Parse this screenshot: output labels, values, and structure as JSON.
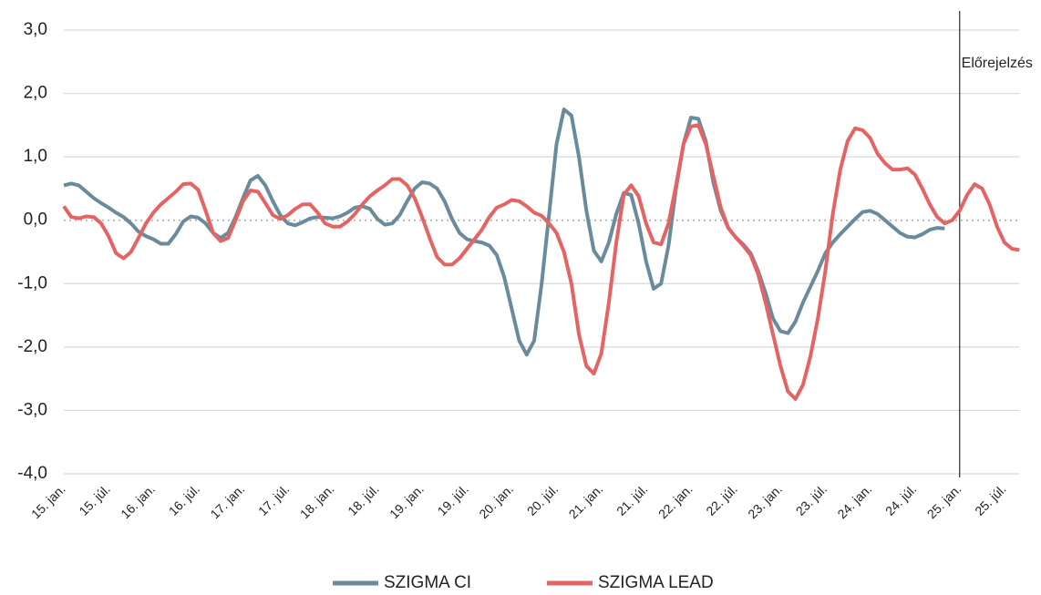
{
  "chart_data": {
    "type": "line",
    "categories": [
      "15. jan.",
      null,
      null,
      null,
      null,
      null,
      "15. júl.",
      null,
      null,
      null,
      null,
      null,
      "16. jan.",
      null,
      null,
      null,
      null,
      null,
      "16. júl.",
      null,
      null,
      null,
      null,
      null,
      "17. jan.",
      null,
      null,
      null,
      null,
      null,
      "17. júl.",
      null,
      null,
      null,
      null,
      null,
      "18. jan.",
      null,
      null,
      null,
      null,
      null,
      "18. júl.",
      null,
      null,
      null,
      null,
      null,
      "19. jan.",
      null,
      null,
      null,
      null,
      null,
      "19. júl.",
      null,
      null,
      null,
      null,
      null,
      "20. jan.",
      null,
      null,
      null,
      null,
      null,
      "20. júl.",
      null,
      null,
      null,
      null,
      null,
      "21. jan.",
      null,
      null,
      null,
      null,
      null,
      "21. júl.",
      null,
      null,
      null,
      null,
      null,
      "22. jan.",
      null,
      null,
      null,
      null,
      null,
      "22. júl.",
      null,
      null,
      null,
      null,
      null,
      "23. jan.",
      null,
      null,
      null,
      null,
      null,
      "23. júl.",
      null,
      null,
      null,
      null,
      null,
      "24. jan.",
      null,
      null,
      null,
      null,
      null,
      "24. júl.",
      null,
      null,
      null,
      null,
      null,
      "25. jan.",
      null,
      null,
      null,
      null,
      null,
      "25. júl.",
      null,
      null
    ],
    "series": [
      {
        "name": "SZIGMA CI",
        "color": "#6a8b9c",
        "values": [
          0.55,
          0.58,
          0.55,
          0.45,
          0.35,
          0.27,
          0.2,
          0.12,
          0.05,
          -0.05,
          -0.18,
          -0.25,
          -0.3,
          -0.37,
          -0.37,
          -0.22,
          -0.02,
          0.06,
          0.04,
          -0.05,
          -0.2,
          -0.28,
          -0.2,
          0.05,
          0.35,
          0.63,
          0.7,
          0.55,
          0.3,
          0.08,
          -0.05,
          -0.08,
          -0.03,
          0.03,
          0.05,
          0.04,
          0.03,
          0.06,
          0.12,
          0.2,
          0.22,
          0.18,
          0.02,
          -0.07,
          -0.05,
          0.08,
          0.3,
          0.5,
          0.6,
          0.58,
          0.5,
          0.3,
          0.02,
          -0.2,
          -0.3,
          -0.33,
          -0.35,
          -0.4,
          -0.55,
          -0.9,
          -1.4,
          -1.9,
          -2.12,
          -1.9,
          -1.0,
          0.1,
          1.2,
          1.75,
          1.65,
          1.0,
          0.15,
          -0.48,
          -0.65,
          -0.35,
          0.1,
          0.43,
          0.4,
          -0.05,
          -0.65,
          -1.08,
          -1.0,
          -0.4,
          0.5,
          1.2,
          1.62,
          1.6,
          1.25,
          0.6,
          0.15,
          -0.12,
          -0.27,
          -0.38,
          -0.52,
          -0.8,
          -1.15,
          -1.55,
          -1.75,
          -1.78,
          -1.6,
          -1.3,
          -1.05,
          -0.8,
          -0.52,
          -0.35,
          -0.22,
          -0.1,
          0.02,
          0.13,
          0.15,
          0.1,
          0.0,
          -0.1,
          -0.2,
          -0.26,
          -0.27,
          -0.22,
          -0.15,
          -0.12,
          -0.13,
          null,
          null,
          null,
          null,
          null,
          null,
          null,
          null,
          null,
          null
        ]
      },
      {
        "name": "SZIGMA LEAD",
        "color": "#e46464",
        "values": [
          0.22,
          0.05,
          0.03,
          0.06,
          0.05,
          -0.05,
          -0.25,
          -0.52,
          -0.6,
          -0.5,
          -0.28,
          -0.05,
          0.12,
          0.25,
          0.35,
          0.45,
          0.57,
          0.58,
          0.48,
          0.15,
          -0.2,
          -0.33,
          -0.28,
          0.0,
          0.3,
          0.47,
          0.45,
          0.27,
          0.08,
          0.02,
          0.08,
          0.18,
          0.25,
          0.25,
          0.12,
          -0.05,
          -0.1,
          -0.1,
          -0.02,
          0.1,
          0.25,
          0.38,
          0.47,
          0.55,
          0.65,
          0.65,
          0.55,
          0.35,
          0.05,
          -0.28,
          -0.58,
          -0.7,
          -0.7,
          -0.6,
          -0.45,
          -0.3,
          -0.15,
          0.05,
          0.2,
          0.25,
          0.32,
          0.3,
          0.22,
          0.12,
          0.07,
          -0.05,
          -0.2,
          -0.5,
          -1.0,
          -1.8,
          -2.3,
          -2.42,
          -2.1,
          -1.3,
          -0.35,
          0.4,
          0.55,
          0.38,
          -0.05,
          -0.35,
          -0.38,
          -0.05,
          0.55,
          1.2,
          1.48,
          1.5,
          1.2,
          0.7,
          0.2,
          -0.12,
          -0.27,
          -0.4,
          -0.55,
          -0.85,
          -1.3,
          -1.8,
          -2.3,
          -2.7,
          -2.82,
          -2.6,
          -2.15,
          -1.55,
          -0.8,
          0.1,
          0.8,
          1.25,
          1.45,
          1.42,
          1.3,
          1.05,
          0.9,
          0.8,
          0.8,
          0.82,
          0.72,
          0.5,
          0.25,
          0.05,
          -0.05,
          0.0,
          0.15,
          0.4,
          0.57,
          0.5,
          0.25,
          -0.1,
          -0.35,
          -0.45,
          -0.47
        ]
      }
    ],
    "ylim": [
      -4,
      3
    ],
    "yticks": [
      {
        "value": -4,
        "label": "-4,0"
      },
      {
        "value": -3,
        "label": "-3,0"
      },
      {
        "value": -2,
        "label": "-2,0"
      },
      {
        "value": -1,
        "label": "-1,0"
      },
      {
        "value": 0,
        "label": "0,0"
      },
      {
        "value": 1,
        "label": "1,0"
      },
      {
        "value": 2,
        "label": "2,0"
      },
      {
        "value": 3,
        "label": "3,0"
      }
    ],
    "grid": true,
    "legend": "bottom",
    "annotations": [
      {
        "text": "Előrejelzés",
        "x": "25. jan."
      }
    ]
  }
}
